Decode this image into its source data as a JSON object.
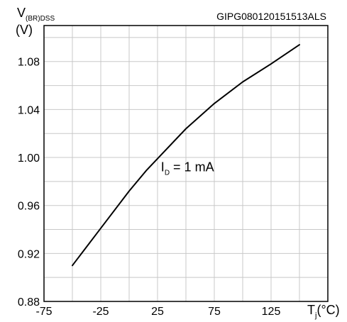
{
  "chart_data": {
    "type": "line",
    "id_label": "GIPG080120151513ALS",
    "ylabel": {
      "main": "V",
      "sub": "(BR)DSS",
      "unit": "(V)"
    },
    "xlabel": {
      "main": "T",
      "sub": "j",
      "unit": "(°C)"
    },
    "annotation": {
      "main": "I",
      "sub": "D",
      "rest": " = 1 mA",
      "x": 28,
      "y": 0.992
    },
    "xlim": [
      -75,
      175
    ],
    "ylim": [
      0.88,
      1.11
    ],
    "x_ticks": [
      -75,
      -50,
      -25,
      0,
      25,
      50,
      75,
      100,
      125,
      150,
      175
    ],
    "x_tick_labels": [
      "-75",
      "-25",
      "25",
      "75",
      "125"
    ],
    "x_tick_label_values": [
      -75,
      -25,
      25,
      75,
      125
    ],
    "y_ticks": [
      0.88,
      0.9,
      0.92,
      0.94,
      0.96,
      0.98,
      1.0,
      1.02,
      1.04,
      1.06,
      1.08,
      1.1
    ],
    "y_tick_labels": [
      "0.88",
      "0.92",
      "0.96",
      "1.00",
      "1.04",
      "1.08"
    ],
    "y_tick_label_values": [
      0.88,
      0.92,
      0.96,
      1.0,
      1.04,
      1.08
    ],
    "grid": true,
    "series": [
      {
        "color": "#000000",
        "x": [
          -50,
          -25,
          0,
          15,
          25,
          50,
          75,
          100,
          125,
          150
        ],
        "y": [
          0.91,
          0.941,
          0.972,
          0.989,
          0.999,
          1.024,
          1.045,
          1.063,
          1.078,
          1.094
        ]
      }
    ]
  }
}
